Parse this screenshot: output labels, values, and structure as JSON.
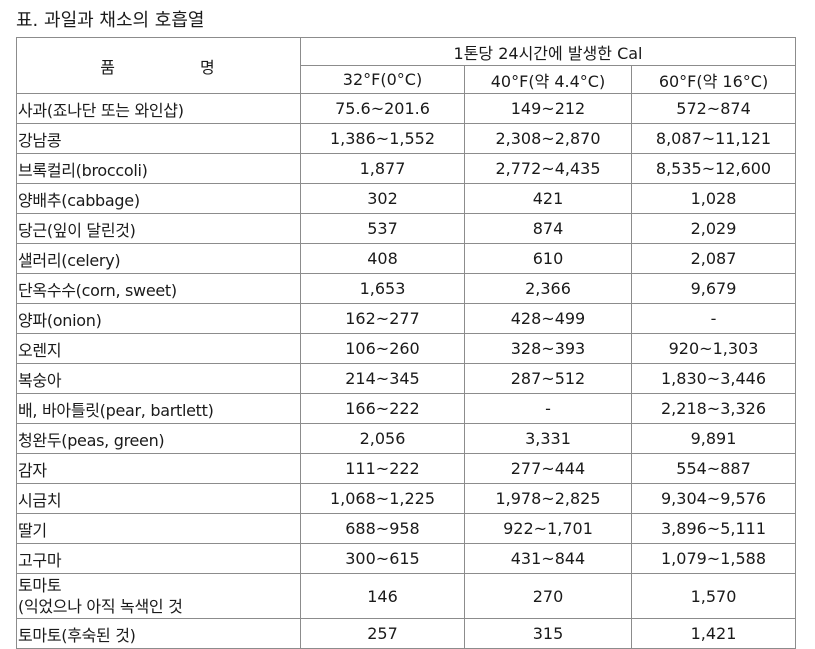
{
  "title": "표. 과일과 채소의 호흡열",
  "table": {
    "item_header": "품 명",
    "group_header": "1톤당 24시간에 발생한 Cal",
    "columns": [
      "32°F(0°C)",
      "40°F(약 4.4°C)",
      "60°F(약 16°C)"
    ],
    "rows": [
      {
        "name": "사과(죠나단 또는 와인샵)",
        "values": [
          "75.6~201.6",
          "149~212",
          "572~874"
        ]
      },
      {
        "name": "강남콩",
        "values": [
          "1,386~1,552",
          "2,308~2,870",
          "8,087~11,121"
        ]
      },
      {
        "name": "브록컬리(broccoli)",
        "values": [
          "1,877",
          "2,772~4,435",
          "8,535~12,600"
        ]
      },
      {
        "name": "양배추(cabbage)",
        "values": [
          "302",
          "421",
          "1,028"
        ]
      },
      {
        "name": "당근(잎이 달린것)",
        "values": [
          "537",
          "874",
          "2,029"
        ]
      },
      {
        "name": "샐러리(celery)",
        "values": [
          "408",
          "610",
          "2,087"
        ]
      },
      {
        "name": "단옥수수(corn, sweet)",
        "values": [
          "1,653",
          "2,366",
          "9,679"
        ]
      },
      {
        "name": "양파(onion)",
        "values": [
          "162~277",
          "428~499",
          "-"
        ]
      },
      {
        "name": "오렌지",
        "values": [
          "106~260",
          "328~393",
          "920~1,303"
        ]
      },
      {
        "name": "복숭아",
        "values": [
          "214~345",
          "287~512",
          "1,830~3,446"
        ]
      },
      {
        "name": "배, 바아틀릿(pear, bartlett)",
        "values": [
          "166~222",
          "-",
          "2,218~3,326"
        ]
      },
      {
        "name": "청완두(peas, green)",
        "values": [
          "2,056",
          "3,331",
          "9,891"
        ]
      },
      {
        "name": "감자",
        "values": [
          "111~222",
          "277~444",
          "554~887"
        ]
      },
      {
        "name": "시금치",
        "values": [
          "1,068~1,225",
          "1,978~2,825",
          "9,304~9,576"
        ]
      },
      {
        "name": "딸기",
        "values": [
          "688~958",
          "922~1,701",
          "3,896~5,111"
        ]
      },
      {
        "name": "고구마",
        "values": [
          "300~615",
          "431~844",
          "1,079~1,588"
        ]
      },
      {
        "name": "토마토\n(익었으나 아직 녹색인 것",
        "values": [
          "146",
          "270",
          "1,570"
        ]
      },
      {
        "name": "토마토(후숙된 것)",
        "values": [
          "257",
          "315",
          "1,421"
        ]
      }
    ]
  }
}
